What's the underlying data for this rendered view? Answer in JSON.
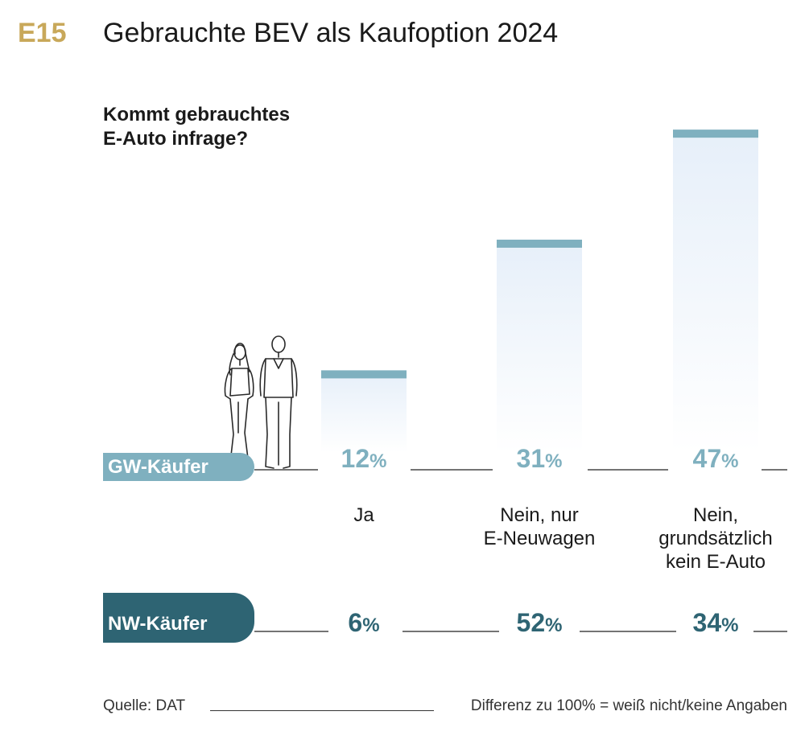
{
  "header": {
    "code": "E15",
    "title": "Gebrauchte BEV als Kaufoption 2024"
  },
  "question": {
    "line1": "Kommt gebrauchtes",
    "line2": "E-Auto infrage?"
  },
  "chart_data": {
    "type": "bar",
    "categories": [
      {
        "lines": [
          "Ja"
        ]
      },
      {
        "lines": [
          "Nein, nur",
          "E-Neuwagen"
        ]
      },
      {
        "lines": [
          "Nein,",
          "grundsätzlich",
          "kein E-Auto"
        ]
      }
    ],
    "series": [
      {
        "name": "GW-Käufer",
        "values": [
          12,
          31,
          47
        ],
        "color": "#7fb0bf",
        "drawn_as_bars": true
      },
      {
        "name": "NW-Käufer",
        "values": [
          6,
          52,
          34
        ],
        "color": "#2e6473",
        "drawn_as_bars": false
      }
    ],
    "unit": "%",
    "bar_fill_color": "#eaf2fa"
  },
  "footer": {
    "source": "Quelle: DAT",
    "note": "Differenz zu 100% = weiß nicht/keine Angaben"
  }
}
